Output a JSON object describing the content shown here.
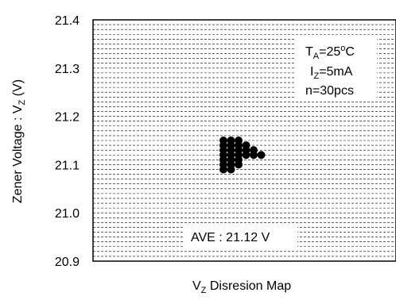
{
  "chart_data": {
    "type": "scatter",
    "title": "",
    "ylabel_main": "Zener Voltage : V",
    "ylabel_sub": "Z",
    "ylabel_unit": " (V)",
    "xlabel_main": "V",
    "xlabel_sub": "Z",
    "xlabel_rest": " Disresion Map",
    "ylim": [
      20.9,
      21.4
    ],
    "yticks": [
      "21.4",
      "21.3",
      "21.2",
      "21.1",
      "21.0",
      "20.9"
    ],
    "grid": true,
    "conditions": {
      "ta_main": "T",
      "ta_sub": "A",
      "ta_rest": "=25",
      "ta_deg": "o",
      "ta_unit": "C",
      "iz_main": "I",
      "iz_sub": "Z",
      "iz_rest": "=5mA",
      "n": "n=30pcs"
    },
    "average_label": "AVE : 21.12 V",
    "point_color": "#000000",
    "points": [
      {
        "slot": 0,
        "y": 21.09
      },
      {
        "slot": 1,
        "y": 21.09
      },
      {
        "slot": 0,
        "y": 21.1
      },
      {
        "slot": 1,
        "y": 21.1
      },
      {
        "slot": 2,
        "y": 21.1
      },
      {
        "slot": 0,
        "y": 21.11
      },
      {
        "slot": 1,
        "y": 21.11
      },
      {
        "slot": 2,
        "y": 21.11
      },
      {
        "slot": 0,
        "y": 21.12
      },
      {
        "slot": 1,
        "y": 21.12
      },
      {
        "slot": 2,
        "y": 21.12
      },
      {
        "slot": 3,
        "y": 21.12
      },
      {
        "slot": 4,
        "y": 21.12
      },
      {
        "slot": 5,
        "y": 21.12
      },
      {
        "slot": 0,
        "y": 21.13
      },
      {
        "slot": 1,
        "y": 21.13
      },
      {
        "slot": 2,
        "y": 21.13
      },
      {
        "slot": 3,
        "y": 21.13
      },
      {
        "slot": 4,
        "y": 21.13
      },
      {
        "slot": 0,
        "y": 21.14
      },
      {
        "slot": 1,
        "y": 21.14
      },
      {
        "slot": 2,
        "y": 21.14
      },
      {
        "slot": 3,
        "y": 21.14
      },
      {
        "slot": 0,
        "y": 21.15
      },
      {
        "slot": 1,
        "y": 21.15
      },
      {
        "slot": 2,
        "y": 21.15
      },
      {
        "slot": 0,
        "y": 21.09
      },
      {
        "slot": 1,
        "y": 21.1
      },
      {
        "slot": 2,
        "y": 21.11
      },
      {
        "slot": 0,
        "y": 21.12
      }
    ]
  }
}
